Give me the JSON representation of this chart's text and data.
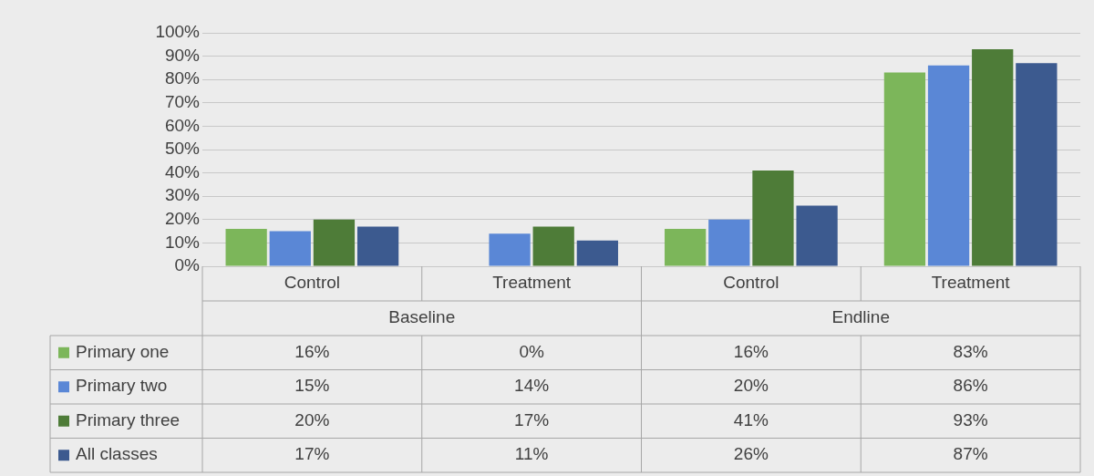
{
  "chart_data": {
    "type": "bar",
    "categories": [
      "Control",
      "Treatment",
      "Control",
      "Treatment"
    ],
    "annotations": [
      "Baseline",
      "Endline"
    ],
    "series": [
      {
        "name": "Primary one",
        "color": "#7cb65a",
        "values": [
          16,
          0,
          16,
          83
        ],
        "value_labels": [
          "16%",
          "0%",
          "16%",
          "83%"
        ]
      },
      {
        "name": "Primary two",
        "color": "#5a87d6",
        "values": [
          15,
          14,
          20,
          86
        ],
        "value_labels": [
          "15%",
          "14%",
          "20%",
          "86%"
        ]
      },
      {
        "name": "Primary three",
        "color": "#4e7c38",
        "values": [
          20,
          17,
          41,
          93
        ],
        "value_labels": [
          "20%",
          "17%",
          "41%",
          "93%"
        ]
      },
      {
        "name": "All classes",
        "color": "#3c5a8f",
        "values": [
          17,
          11,
          26,
          87
        ],
        "value_labels": [
          "17%",
          "11%",
          "26%",
          "87%"
        ]
      }
    ],
    "ylim": [
      0,
      100
    ],
    "yticks": [
      {
        "value": 0,
        "label": "0%"
      },
      {
        "value": 10,
        "label": "10%"
      },
      {
        "value": 20,
        "label": "20%"
      },
      {
        "value": 30,
        "label": "30%"
      },
      {
        "value": 40,
        "label": "40%"
      },
      {
        "value": 50,
        "label": "50%"
      },
      {
        "value": 60,
        "label": "60%"
      },
      {
        "value": 70,
        "label": "70%"
      },
      {
        "value": 80,
        "label": "80%"
      },
      {
        "value": 90,
        "label": "90%"
      },
      {
        "value": 100,
        "label": "100%"
      }
    ],
    "grid": "y",
    "legend": "bottom"
  }
}
